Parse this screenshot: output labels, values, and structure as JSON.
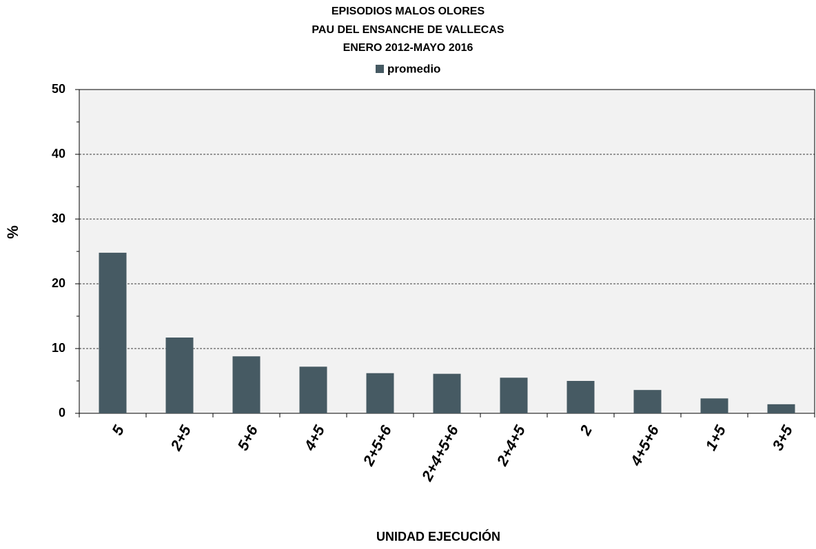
{
  "chart_data": {
    "type": "bar",
    "title": [
      "EPISODIOS MALOS OLORES",
      "PAU DEL ENSANCHE DE VALLECAS",
      "ENERO 2012-MAYO 2016"
    ],
    "x_label": "UNIDAD EJECUCIÓN",
    "y_label": "%",
    "categories": [
      "5",
      "2+5",
      "5+6",
      "4+5",
      "2+5+6",
      "2+4+5+6",
      "2+4+5",
      "2",
      "4+5+6",
      "1+5",
      "3+5"
    ],
    "series": [
      {
        "name": "promedio",
        "color": "#465a63",
        "values": [
          24.8,
          11.7,
          8.8,
          7.2,
          6.2,
          6.1,
          5.5,
          5.0,
          3.6,
          2.3,
          1.4
        ]
      }
    ],
    "ylim": [
      0,
      50
    ],
    "yticks": [
      0,
      10,
      20,
      30,
      40,
      50
    ],
    "y_minor_ticks": [
      5,
      15,
      25,
      35,
      45
    ],
    "grid": true,
    "legend": "top"
  }
}
